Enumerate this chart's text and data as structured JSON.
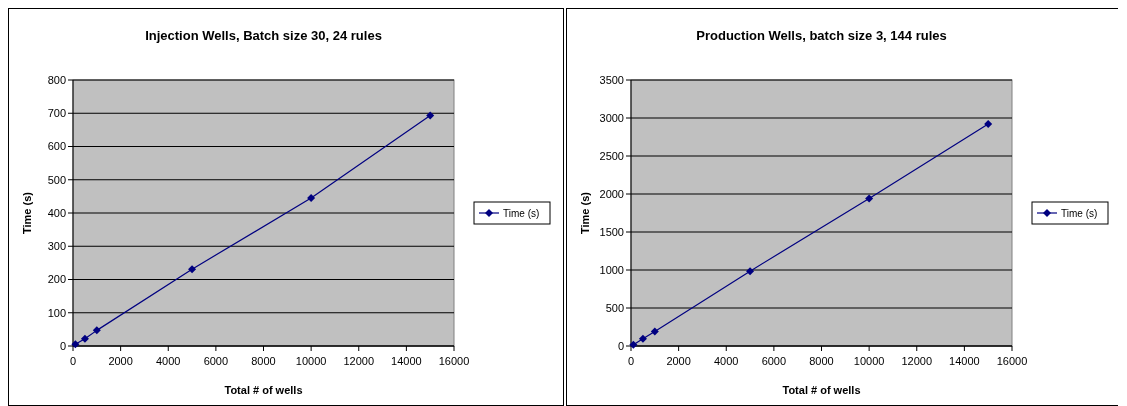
{
  "chart_data": [
    {
      "type": "line",
      "title": "Injection Wells, Batch size 30, 24 rules",
      "xlabel": "Total # of wells",
      "ylabel": "Time (s)",
      "x": [
        100,
        500,
        1000,
        5000,
        10000,
        15000
      ],
      "series": [
        {
          "name": "Time (s)",
          "color": "#000080",
          "values": [
            5,
            22,
            47,
            231,
            445,
            693
          ]
        }
      ],
      "xlim": [
        0,
        16000
      ],
      "xticks": [
        0,
        2000,
        4000,
        6000,
        8000,
        10000,
        12000,
        14000,
        16000
      ],
      "ylim": [
        0,
        800
      ],
      "yticks": [
        0,
        100,
        200,
        300,
        400,
        500,
        600,
        700,
        800
      ],
      "grid": "y",
      "legend": "right",
      "marker": "diamond",
      "line_style": "solid"
    },
    {
      "type": "line",
      "title": "Production Wells, batch size 3, 144 rules",
      "xlabel": "Total # of wells",
      "ylabel": "Time (s)",
      "x": [
        100,
        500,
        1000,
        5000,
        10000,
        15000
      ],
      "series": [
        {
          "name": "Time (s)",
          "color": "#000080",
          "values": [
            15,
            95,
            190,
            985,
            1940,
            2920
          ]
        }
      ],
      "xlim": [
        0,
        16000
      ],
      "xticks": [
        0,
        2000,
        4000,
        6000,
        8000,
        10000,
        12000,
        14000,
        16000
      ],
      "ylim": [
        0,
        3500
      ],
      "yticks": [
        0,
        500,
        1000,
        1500,
        2000,
        2500,
        3000,
        3500
      ],
      "grid": "y",
      "legend": "right",
      "marker": "diamond",
      "line_style": "solid"
    }
  ]
}
